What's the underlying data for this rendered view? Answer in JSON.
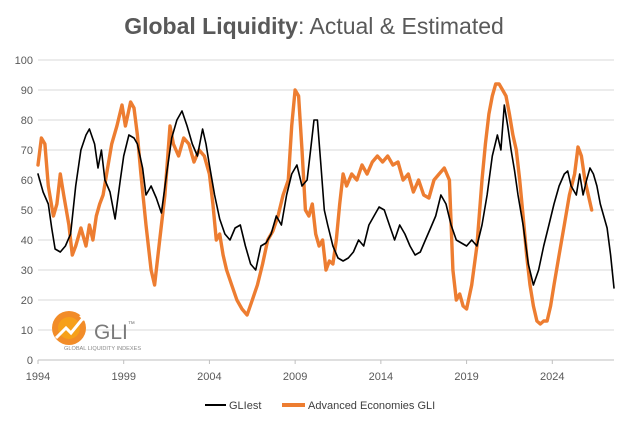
{
  "chart_data": {
    "type": "line",
    "title": {
      "bold": "Global Liquidity",
      "rest": ": Actual  & Estimated"
    },
    "xlabel": "",
    "ylabel": "",
    "xlim": [
      1994,
      2027.6
    ],
    "ylim": [
      0,
      100
    ],
    "grid": "horizontal",
    "legend_position": "bottom",
    "x_ticks": [
      "1994",
      "1999",
      "2004",
      "2009",
      "2014",
      "2019",
      "2024"
    ],
    "x_tick_values": [
      1994,
      1999,
      2004,
      2009,
      2014,
      2019,
      2024
    ],
    "y_ticks": [
      "0",
      "10",
      "20",
      "30",
      "40",
      "50",
      "60",
      "70",
      "80",
      "90",
      "100"
    ],
    "y_tick_values": [
      0,
      10,
      20,
      30,
      40,
      50,
      60,
      70,
      80,
      90,
      100
    ],
    "series": [
      {
        "name": "GLIest",
        "color": "#000000",
        "points": [
          [
            1994.0,
            62
          ],
          [
            1994.3,
            56
          ],
          [
            1994.6,
            52
          ],
          [
            1994.8,
            44
          ],
          [
            1995.0,
            37
          ],
          [
            1995.3,
            36
          ],
          [
            1995.6,
            38
          ],
          [
            1995.9,
            42
          ],
          [
            1996.2,
            58
          ],
          [
            1996.5,
            70
          ],
          [
            1996.8,
            75
          ],
          [
            1997.0,
            77
          ],
          [
            1997.3,
            72
          ],
          [
            1997.5,
            64
          ],
          [
            1997.7,
            70
          ],
          [
            1997.9,
            60
          ],
          [
            1998.2,
            56
          ],
          [
            1998.5,
            47
          ],
          [
            1998.8,
            60
          ],
          [
            1999.0,
            68
          ],
          [
            1999.3,
            75
          ],
          [
            1999.6,
            74
          ],
          [
            1999.8,
            72
          ],
          [
            2000.1,
            64
          ],
          [
            2000.3,
            55
          ],
          [
            2000.6,
            58
          ],
          [
            2000.9,
            54
          ],
          [
            2001.2,
            49
          ],
          [
            2001.5,
            62
          ],
          [
            2001.8,
            74
          ],
          [
            2002.1,
            80
          ],
          [
            2002.4,
            83
          ],
          [
            2002.7,
            78
          ],
          [
            2003.0,
            72
          ],
          [
            2003.3,
            68
          ],
          [
            2003.6,
            77
          ],
          [
            2003.8,
            72
          ],
          [
            2004.0,
            65
          ],
          [
            2004.3,
            55
          ],
          [
            2004.6,
            47
          ],
          [
            2004.9,
            42
          ],
          [
            2005.2,
            40
          ],
          [
            2005.5,
            44
          ],
          [
            2005.8,
            45
          ],
          [
            2006.1,
            38
          ],
          [
            2006.4,
            32
          ],
          [
            2006.7,
            30
          ],
          [
            2007.0,
            38
          ],
          [
            2007.3,
            39
          ],
          [
            2007.6,
            42
          ],
          [
            2007.9,
            48
          ],
          [
            2008.2,
            45
          ],
          [
            2008.5,
            55
          ],
          [
            2008.8,
            62
          ],
          [
            2009.1,
            65
          ],
          [
            2009.4,
            58
          ],
          [
            2009.7,
            60
          ],
          [
            2009.9,
            70
          ],
          [
            2010.1,
            80
          ],
          [
            2010.3,
            80
          ],
          [
            2010.5,
            65
          ],
          [
            2010.7,
            50
          ],
          [
            2010.9,
            45
          ],
          [
            2011.2,
            38
          ],
          [
            2011.5,
            34
          ],
          [
            2011.8,
            33
          ],
          [
            2012.1,
            34
          ],
          [
            2012.4,
            36
          ],
          [
            2012.7,
            40
          ],
          [
            2013.0,
            38
          ],
          [
            2013.3,
            45
          ],
          [
            2013.6,
            48
          ],
          [
            2013.9,
            51
          ],
          [
            2014.2,
            50
          ],
          [
            2014.5,
            45
          ],
          [
            2014.8,
            40
          ],
          [
            2015.1,
            45
          ],
          [
            2015.4,
            42
          ],
          [
            2015.7,
            38
          ],
          [
            2016.0,
            35
          ],
          [
            2016.3,
            36
          ],
          [
            2016.6,
            40
          ],
          [
            2016.9,
            44
          ],
          [
            2017.2,
            48
          ],
          [
            2017.5,
            55
          ],
          [
            2017.8,
            52
          ],
          [
            2018.1,
            45
          ],
          [
            2018.4,
            40
          ],
          [
            2018.7,
            39
          ],
          [
            2019.0,
            38
          ],
          [
            2019.3,
            40
          ],
          [
            2019.6,
            38
          ],
          [
            2019.9,
            45
          ],
          [
            2020.2,
            55
          ],
          [
            2020.5,
            68
          ],
          [
            2020.8,
            75
          ],
          [
            2021.0,
            70
          ],
          [
            2021.2,
            85
          ],
          [
            2021.4,
            78
          ],
          [
            2021.6,
            70
          ],
          [
            2021.8,
            63
          ],
          [
            2022.0,
            55
          ],
          [
            2022.3,
            45
          ],
          [
            2022.6,
            32
          ],
          [
            2022.9,
            25
          ],
          [
            2023.2,
            30
          ],
          [
            2023.5,
            38
          ],
          [
            2023.8,
            45
          ],
          [
            2024.1,
            52
          ],
          [
            2024.4,
            58
          ],
          [
            2024.7,
            62
          ],
          [
            2024.9,
            63
          ],
          [
            2025.1,
            58
          ],
          [
            2025.4,
            55
          ],
          [
            2025.6,
            62
          ],
          [
            2025.8,
            55
          ],
          [
            2026.0,
            60
          ],
          [
            2026.2,
            64
          ],
          [
            2026.4,
            62
          ],
          [
            2026.6,
            58
          ],
          [
            2026.8,
            52
          ],
          [
            2027.0,
            48
          ],
          [
            2027.2,
            44
          ],
          [
            2027.4,
            35
          ],
          [
            2027.6,
            24
          ]
        ]
      },
      {
        "name": "Advanced Economies GLI",
        "color": "#ED7D31",
        "points": [
          [
            1994.0,
            65
          ],
          [
            1994.2,
            74
          ],
          [
            1994.4,
            72
          ],
          [
            1994.6,
            58
          ],
          [
            1994.9,
            48
          ],
          [
            1995.1,
            52
          ],
          [
            1995.3,
            62
          ],
          [
            1995.5,
            55
          ],
          [
            1995.8,
            45
          ],
          [
            1996.0,
            35
          ],
          [
            1996.2,
            38
          ],
          [
            1996.5,
            44
          ],
          [
            1996.8,
            38
          ],
          [
            1997.0,
            45
          ],
          [
            1997.2,
            40
          ],
          [
            1997.4,
            48
          ],
          [
            1997.6,
            52
          ],
          [
            1997.8,
            55
          ],
          [
            1998.0,
            62
          ],
          [
            1998.3,
            72
          ],
          [
            1998.6,
            78
          ],
          [
            1998.9,
            85
          ],
          [
            1999.1,
            78
          ],
          [
            1999.4,
            86
          ],
          [
            1999.6,
            84
          ],
          [
            1999.8,
            75
          ],
          [
            2000.0,
            62
          ],
          [
            2000.3,
            45
          ],
          [
            2000.6,
            30
          ],
          [
            2000.8,
            25
          ],
          [
            2001.1,
            40
          ],
          [
            2001.4,
            55
          ],
          [
            2001.7,
            78
          ],
          [
            2001.9,
            72
          ],
          [
            2002.2,
            68
          ],
          [
            2002.5,
            74
          ],
          [
            2002.8,
            72
          ],
          [
            2003.1,
            66
          ],
          [
            2003.4,
            70
          ],
          [
            2003.7,
            68
          ],
          [
            2004.0,
            62
          ],
          [
            2004.2,
            52
          ],
          [
            2004.4,
            40
          ],
          [
            2004.6,
            42
          ],
          [
            2004.8,
            35
          ],
          [
            2005.0,
            30
          ],
          [
            2005.3,
            25
          ],
          [
            2005.6,
            20
          ],
          [
            2005.9,
            17
          ],
          [
            2006.2,
            15
          ],
          [
            2006.5,
            20
          ],
          [
            2006.8,
            25
          ],
          [
            2007.1,
            32
          ],
          [
            2007.4,
            40
          ],
          [
            2007.7,
            43
          ],
          [
            2008.0,
            48
          ],
          [
            2008.3,
            55
          ],
          [
            2008.6,
            60
          ],
          [
            2008.8,
            78
          ],
          [
            2009.0,
            90
          ],
          [
            2009.2,
            88
          ],
          [
            2009.4,
            70
          ],
          [
            2009.6,
            50
          ],
          [
            2009.8,
            48
          ],
          [
            2010.0,
            52
          ],
          [
            2010.2,
            42
          ],
          [
            2010.4,
            38
          ],
          [
            2010.6,
            40
          ],
          [
            2010.8,
            30
          ],
          [
            2011.0,
            33
          ],
          [
            2011.2,
            32
          ],
          [
            2011.4,
            40
          ],
          [
            2011.6,
            52
          ],
          [
            2011.8,
            62
          ],
          [
            2012.0,
            58
          ],
          [
            2012.3,
            62
          ],
          [
            2012.6,
            60
          ],
          [
            2012.9,
            65
          ],
          [
            2013.2,
            62
          ],
          [
            2013.5,
            66
          ],
          [
            2013.8,
            68
          ],
          [
            2014.1,
            66
          ],
          [
            2014.4,
            68
          ],
          [
            2014.7,
            65
          ],
          [
            2015.0,
            66
          ],
          [
            2015.3,
            60
          ],
          [
            2015.6,
            62
          ],
          [
            2015.9,
            56
          ],
          [
            2016.2,
            60
          ],
          [
            2016.5,
            55
          ],
          [
            2016.8,
            54
          ],
          [
            2017.1,
            60
          ],
          [
            2017.4,
            62
          ],
          [
            2017.7,
            64
          ],
          [
            2018.0,
            60
          ],
          [
            2018.2,
            30
          ],
          [
            2018.4,
            20
          ],
          [
            2018.6,
            22
          ],
          [
            2018.8,
            18
          ],
          [
            2019.0,
            17
          ],
          [
            2019.3,
            25
          ],
          [
            2019.6,
            38
          ],
          [
            2019.9,
            60
          ],
          [
            2020.1,
            72
          ],
          [
            2020.3,
            82
          ],
          [
            2020.5,
            88
          ],
          [
            2020.7,
            92
          ],
          [
            2020.9,
            92
          ],
          [
            2021.1,
            90
          ],
          [
            2021.3,
            88
          ],
          [
            2021.5,
            82
          ],
          [
            2021.7,
            75
          ],
          [
            2021.9,
            70
          ],
          [
            2022.1,
            60
          ],
          [
            2022.3,
            48
          ],
          [
            2022.5,
            35
          ],
          [
            2022.7,
            25
          ],
          [
            2022.9,
            18
          ],
          [
            2023.1,
            13
          ],
          [
            2023.3,
            12
          ],
          [
            2023.5,
            13
          ],
          [
            2023.7,
            13
          ],
          [
            2023.9,
            18
          ],
          [
            2024.1,
            25
          ],
          [
            2024.4,
            35
          ],
          [
            2024.7,
            45
          ],
          [
            2025.0,
            55
          ],
          [
            2025.3,
            62
          ],
          [
            2025.5,
            71
          ],
          [
            2025.7,
            68
          ],
          [
            2025.9,
            60
          ],
          [
            2026.1,
            55
          ],
          [
            2026.3,
            50
          ]
        ]
      }
    ]
  },
  "watermark": {
    "logo_text": "GLI",
    "logo_mark": "™",
    "tagline": "GLOBAL LIQUIDITY INDEXES",
    "colors": [
      "#E4572E",
      "#F6A01A"
    ]
  }
}
